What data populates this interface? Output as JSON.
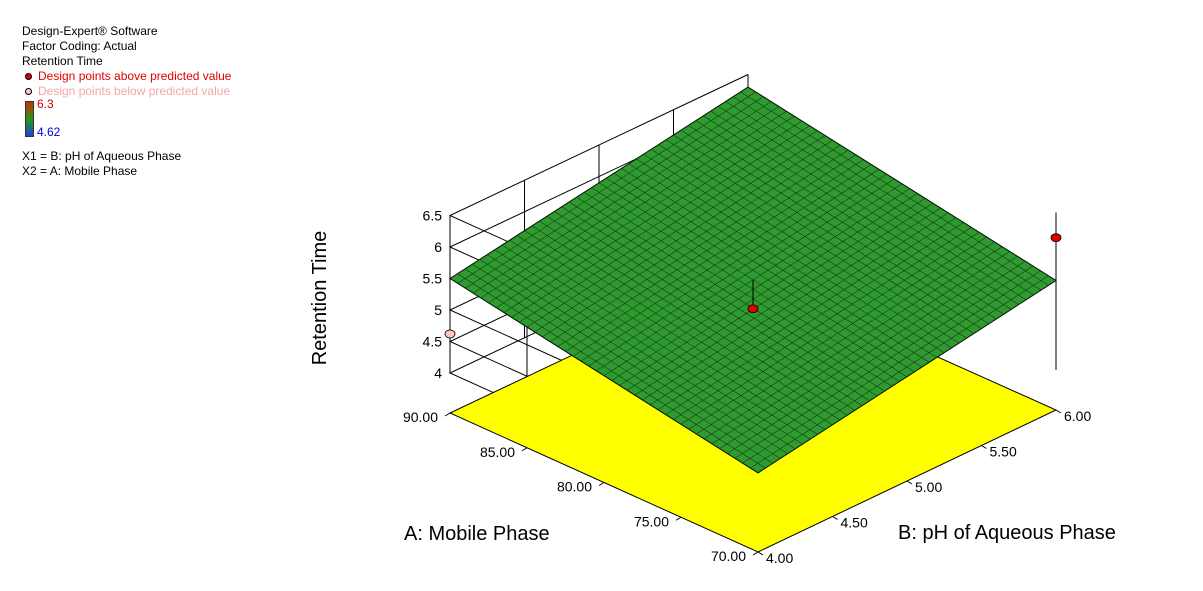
{
  "legend": {
    "software": "Design-Expert® Software",
    "coding": "Factor Coding: Actual",
    "response": "Retention Time",
    "above": "Design points above predicted value",
    "below": "Design points below predicted value",
    "color_high": "6.3",
    "color_low": "4.62",
    "x1": "X1 = B: pH of Aqueous Phase",
    "x2": "X2 = A: Mobile Phase"
  },
  "colors": {
    "surface": "#2f9a2f",
    "surface_grid": "#0b2a0b",
    "floor": "#ffff00",
    "point_above": "#e00000",
    "point_below": "#ffc8c8"
  },
  "chart_data": {
    "type": "surface",
    "title": "",
    "zlabel": "Retention Time",
    "xlabel": "B: pH of Aqueous Phase",
    "ylabel": "A: Mobile Phase",
    "x_ticks": [
      "4.00",
      "4.50",
      "5.00",
      "5.50",
      "6.00"
    ],
    "y_ticks": [
      "70.00",
      "75.00",
      "80.00",
      "85.00",
      "90.00"
    ],
    "z_ticks": [
      "4",
      "4.5",
      "5",
      "5.5",
      "6",
      "6.5"
    ],
    "xlim": [
      4,
      6
    ],
    "ylim": [
      70,
      90
    ],
    "zlim": [
      4,
      6.5
    ],
    "surface_corners": [
      {
        "x": 4,
        "y": 70,
        "z": 4.62
      },
      {
        "x": 6,
        "y": 70,
        "z": 5.42
      },
      {
        "x": 6,
        "y": 90,
        "z": 6.3
      },
      {
        "x": 4,
        "y": 90,
        "z": 5.5
      }
    ],
    "design_points": [
      {
        "x": 4,
        "y": 90,
        "z": 4.62,
        "position": "below"
      },
      {
        "x": 6,
        "y": 70,
        "z": 6.1,
        "position": "above"
      },
      {
        "x": 5,
        "y": 80,
        "z": 5.0,
        "position": "above"
      }
    ],
    "grid": true
  }
}
